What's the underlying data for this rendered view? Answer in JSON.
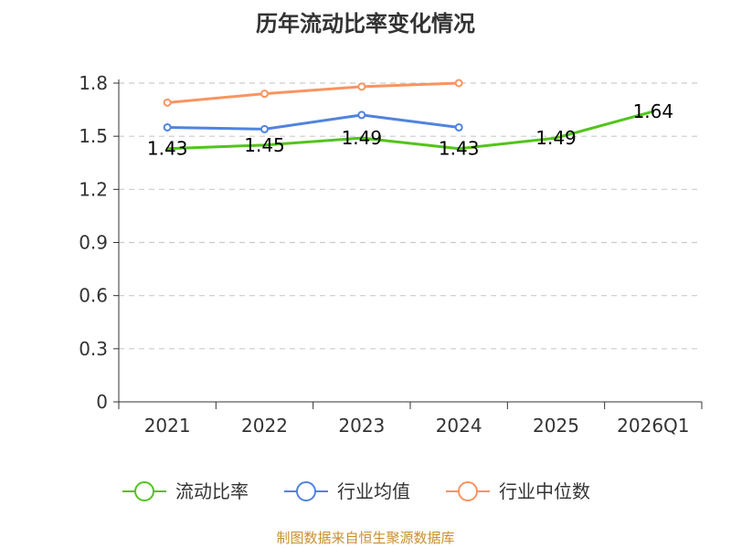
{
  "chart_data": {
    "type": "line",
    "title": "历年流动比率变化情况",
    "categories": [
      "2021",
      "2022",
      "2023",
      "2024",
      "2025",
      "2026Q1"
    ],
    "yticks": [
      "0",
      "0.3",
      "0.6",
      "0.9",
      "1.2",
      "1.5",
      "1.8"
    ],
    "ylim": [
      0,
      1.8
    ],
    "grid": true,
    "legend_position": "bottom",
    "series": [
      {
        "name": "流动比率",
        "color": "#52c41a",
        "values": [
          1.43,
          1.45,
          1.49,
          1.43,
          1.49,
          1.64
        ],
        "labels": [
          "1.43",
          "1.45",
          "1.49",
          "1.43",
          "1.49",
          "1.64"
        ]
      },
      {
        "name": "行业均值",
        "color": "#5083de",
        "values": [
          1.55,
          1.54,
          1.62,
          1.55,
          null,
          null
        ]
      },
      {
        "name": "行业中位数",
        "color": "#f89461",
        "values": [
          1.69,
          1.74,
          1.78,
          1.8,
          null,
          null
        ]
      }
    ]
  },
  "source": "制图数据来自恒生聚源数据库"
}
